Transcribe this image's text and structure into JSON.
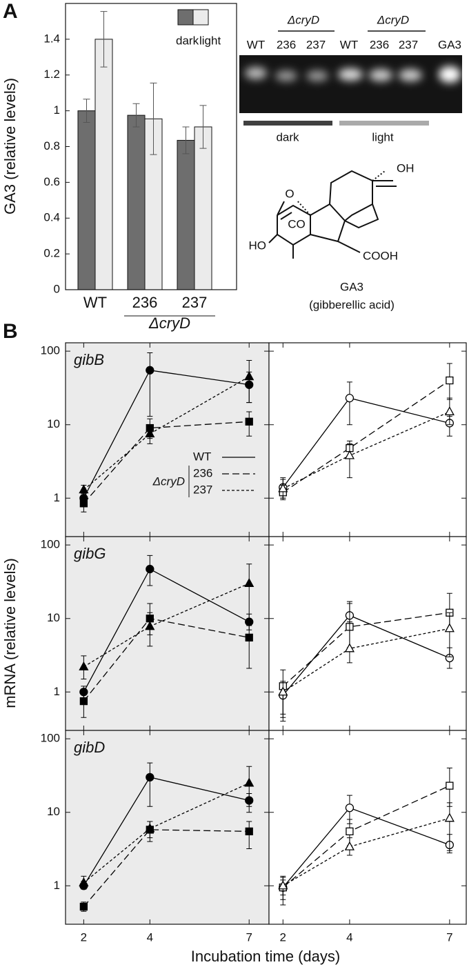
{
  "figure": {
    "panel_a_label": "A",
    "panel_b_label": "B",
    "b_xlabel": "Incubation time (days)",
    "b_ylabel": "mRNA (relative levels)"
  },
  "gel": {
    "group_labels": [
      "ΔcryD",
      "ΔcryD"
    ],
    "lanes": [
      "WT",
      "236",
      "237",
      "WT",
      "236",
      "237",
      "GA3"
    ],
    "conditions": [
      "dark",
      "light"
    ]
  },
  "structure": {
    "labels": [
      "OH",
      "O",
      "CO",
      "HO",
      "COOH"
    ],
    "name": "GA3",
    "subtitle": "(gibberellic acid)"
  },
  "chart_data": [
    {
      "type": "bar",
      "ylabel": "GA3 (relative levels)",
      "categories": [
        "WT",
        "236",
        "237"
      ],
      "group_label": "ΔcryD",
      "ylim": [
        0,
        1.6
      ],
      "yticks": [
        0,
        0.2,
        0.4,
        0.6,
        0.8,
        1,
        1.2,
        1.4
      ],
      "legend": "upper-right",
      "series": [
        {
          "name": "dark",
          "color": "#6e6e6e",
          "values": [
            1,
            0.975,
            0.835
          ],
          "errors": [
            0.065,
            0.065,
            0.075
          ]
        },
        {
          "name": "light",
          "color": "#ebebeb",
          "values": [
            1.4,
            0.955,
            0.91
          ],
          "errors": [
            0.155,
            0.2,
            0.12
          ]
        }
      ]
    },
    {
      "type": "line",
      "title": "gibB",
      "x": [
        2,
        4,
        7
      ],
      "xlim": [
        1.45,
        7.6
      ],
      "xticks": [
        2,
        4,
        7
      ],
      "ylim": [
        0.3,
        130
      ],
      "yticks": [
        1,
        10,
        100
      ],
      "log_y": true,
      "background": "#ebebeb",
      "show_ytick_labels": true,
      "show_xtick_labels": false,
      "legend": "lower-right",
      "legend_group": "ΔcryD",
      "series": [
        {
          "name": "WT",
          "color": "#000000",
          "marker": "circle",
          "filled": true,
          "dash": "solid",
          "values": [
            1,
            55,
            35
          ],
          "error_low": [
            0.85,
            13,
            20
          ],
          "error_high": [
            1.15,
            95,
            52
          ]
        },
        {
          "name": "236",
          "color": "#000000",
          "marker": "square",
          "filled": true,
          "dash": "dashed",
          "values": [
            0.85,
            9,
            11
          ],
          "error_low": [
            0.65,
            6.5,
            7
          ],
          "error_high": [
            1.1,
            12,
            15
          ]
        },
        {
          "name": "237",
          "color": "#000000",
          "marker": "triangle",
          "filled": true,
          "dash": "dotted",
          "values": [
            1.3,
            7.5,
            45
          ],
          "error_low": [
            1.1,
            5.5,
            20
          ],
          "error_high": [
            1.5,
            10,
            75
          ]
        }
      ]
    },
    {
      "type": "line",
      "x": [
        2,
        4,
        7
      ],
      "xlim": [
        1.58,
        7.5
      ],
      "xticks": [
        2,
        4,
        7
      ],
      "ylim": [
        0.3,
        130
      ],
      "yticks": [
        1,
        10,
        100
      ],
      "log_y": true,
      "background": "#ffffff",
      "show_ytick_labels": false,
      "show_xtick_labels": false,
      "series": [
        {
          "color": "#000000",
          "marker": "circle",
          "filled": false,
          "dash": "solid",
          "values": [
            1.4,
            23,
            10.5
          ],
          "error_low": [
            1.0,
            10,
            7
          ],
          "error_high": [
            1.8,
            38,
            13
          ]
        },
        {
          "color": "#000000",
          "marker": "square",
          "filled": false,
          "dash": "dashed",
          "values": [
            1.2,
            4.8,
            40
          ],
          "error_low": [
            0.95,
            3.8,
            22
          ],
          "error_high": [
            1.5,
            6,
            68
          ]
        },
        {
          "color": "#000000",
          "marker": "triangle",
          "filled": false,
          "dash": "dotted",
          "values": [
            1.35,
            3.8,
            15
          ],
          "error_low": [
            1.0,
            1.9,
            10
          ],
          "error_high": [
            1.9,
            5.5,
            23
          ]
        }
      ]
    },
    {
      "type": "line",
      "title": "gibG",
      "x": [
        2,
        4,
        7
      ],
      "xlim": [
        1.45,
        7.6
      ],
      "xticks": [
        2,
        4,
        7
      ],
      "ylim": [
        0.3,
        130
      ],
      "yticks": [
        1,
        10,
        100
      ],
      "log_y": true,
      "background": "#ebebeb",
      "show_ytick_labels": true,
      "show_xtick_labels": false,
      "series": [
        {
          "color": "#000000",
          "marker": "circle",
          "filled": true,
          "dash": "solid",
          "values": [
            1,
            47,
            9
          ],
          "error_low": [
            0.8,
            28,
            7
          ],
          "error_high": [
            1.2,
            72,
            11.5
          ]
        },
        {
          "color": "#000000",
          "marker": "square",
          "filled": true,
          "dash": "dashed",
          "values": [
            0.75,
            10,
            5.5
          ],
          "error_low": [
            0.45,
            6,
            2.1
          ],
          "error_high": [
            1.1,
            16,
            8
          ]
        },
        {
          "color": "#000000",
          "marker": "triangle",
          "filled": true,
          "dash": "dotted",
          "values": [
            2.2,
            7.8,
            30
          ],
          "error_low": [
            1.5,
            4.2,
            9
          ],
          "error_high": [
            3.1,
            12,
            55
          ]
        }
      ]
    },
    {
      "type": "line",
      "x": [
        2,
        4,
        7
      ],
      "xlim": [
        1.58,
        7.5
      ],
      "xticks": [
        2,
        4,
        7
      ],
      "ylim": [
        0.3,
        130
      ],
      "yticks": [
        1,
        10,
        100
      ],
      "log_y": true,
      "background": "#ffffff",
      "show_ytick_labels": false,
      "show_xtick_labels": false,
      "series": [
        {
          "color": "#000000",
          "marker": "circle",
          "filled": false,
          "dash": "solid",
          "values": [
            0.9,
            11,
            2.9
          ],
          "error_low": [
            0.45,
            7,
            2.1
          ],
          "error_high": [
            1.3,
            16,
            4
          ]
        },
        {
          "color": "#000000",
          "marker": "square",
          "filled": false,
          "dash": "dashed",
          "values": [
            1.2,
            7.7,
            12
          ],
          "error_low": [
            0.5,
            4,
            7
          ],
          "error_high": [
            2,
            17,
            22
          ]
        },
        {
          "color": "#000000",
          "marker": "triangle",
          "filled": false,
          "dash": "dotted",
          "values": [
            1.0,
            3.9,
            7.3
          ],
          "error_low": [
            0.4,
            2.5,
            3
          ],
          "error_high": [
            1.4,
            9,
            12
          ]
        }
      ]
    },
    {
      "type": "line",
      "title": "gibD",
      "x": [
        2,
        4,
        7
      ],
      "xlim": [
        1.45,
        7.6
      ],
      "xticks": [
        2,
        4,
        7
      ],
      "ylim": [
        0.3,
        130
      ],
      "yticks": [
        1,
        10,
        100
      ],
      "log_y": true,
      "background": "#ebebeb",
      "show_ytick_labels": true,
      "show_xtick_labels": true,
      "series": [
        {
          "color": "#000000",
          "marker": "circle",
          "filled": true,
          "dash": "solid",
          "values": [
            1,
            30,
            14.5
          ],
          "error_low": [
            0.9,
            12,
            10
          ],
          "error_high": [
            1.15,
            47,
            18
          ]
        },
        {
          "color": "#000000",
          "marker": "square",
          "filled": true,
          "dash": "dashed",
          "values": [
            0.52,
            5.8,
            5.5
          ],
          "error_low": [
            0.45,
            4,
            3.2
          ],
          "error_high": [
            0.6,
            7.5,
            7.5
          ]
        },
        {
          "color": "#000000",
          "marker": "triangle",
          "filled": true,
          "dash": "dotted",
          "values": [
            1.1,
            6,
            25
          ],
          "error_low": [
            0.95,
            4.5,
            12
          ],
          "error_high": [
            1.35,
            7.5,
            42
          ]
        }
      ]
    },
    {
      "type": "line",
      "x": [
        2,
        4,
        7
      ],
      "xlim": [
        1.58,
        7.5
      ],
      "xticks": [
        2,
        4,
        7
      ],
      "ylim": [
        0.3,
        130
      ],
      "yticks": [
        1,
        10,
        100
      ],
      "log_y": true,
      "background": "#ffffff",
      "show_ytick_labels": false,
      "show_xtick_labels": true,
      "series": [
        {
          "color": "#000000",
          "marker": "circle",
          "filled": false,
          "dash": "solid",
          "values": [
            0.95,
            11.5,
            3.6
          ],
          "error_low": [
            0.65,
            7,
            2.8
          ],
          "error_high": [
            1.3,
            17,
            5
          ]
        },
        {
          "color": "#000000",
          "marker": "square",
          "filled": false,
          "dash": "dashed",
          "values": [
            0.95,
            5.5,
            23
          ],
          "error_low": [
            0.55,
            3.5,
            12
          ],
          "error_high": [
            1.35,
            8,
            40
          ]
        },
        {
          "color": "#000000",
          "marker": "triangle",
          "filled": false,
          "dash": "dotted",
          "values": [
            1.0,
            3.4,
            8.3
          ],
          "error_low": [
            0.75,
            2.6,
            3
          ],
          "error_high": [
            1.2,
            4.5,
            13.5
          ]
        }
      ]
    }
  ]
}
